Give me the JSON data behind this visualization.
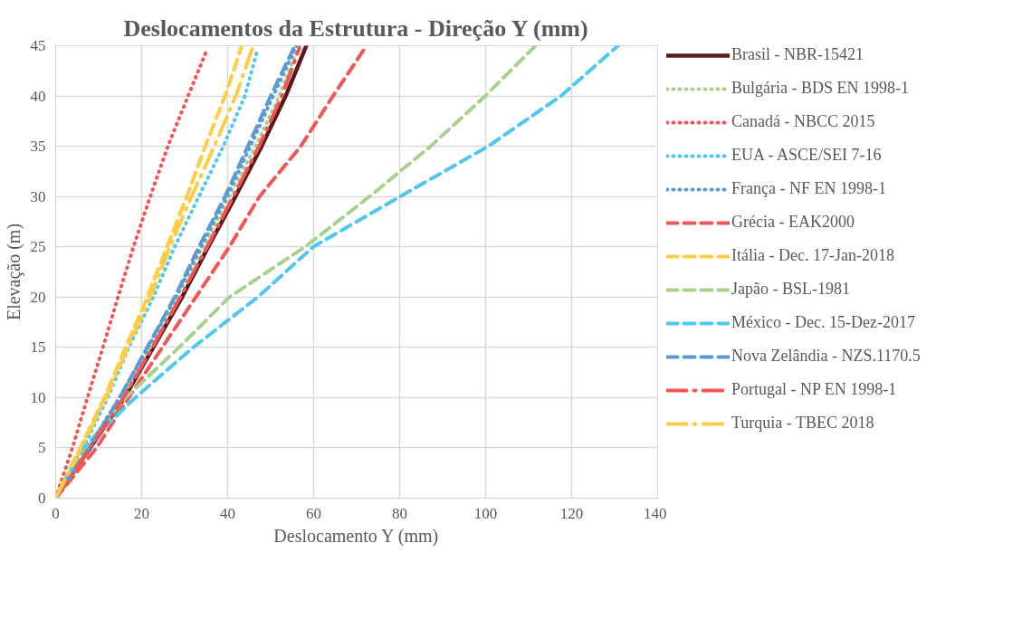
{
  "chart_data": {
    "type": "line",
    "title": "Deslocamentos da Estrutura - Direção Y (mm)",
    "xlabel": "Deslocamento Y (mm)",
    "ylabel": "Elevação (m)",
    "xlim": [
      0,
      140
    ],
    "ylim": [
      0,
      45
    ],
    "xticks": [
      0,
      20,
      40,
      60,
      80,
      100,
      120,
      140
    ],
    "yticks": [
      0,
      5,
      10,
      15,
      20,
      25,
      30,
      35,
      40,
      45
    ],
    "grid": true,
    "legend": "right",
    "series": [
      {
        "name": "Brasil - NBR-15421",
        "color": "#5b1a1a",
        "line_style": "solid",
        "x": [
          0,
          8,
          16,
          22.7,
          29.4,
          35.5,
          41.8,
          47.9,
          53.5,
          58.3
        ],
        "values": [
          0,
          5,
          10,
          15,
          20,
          25,
          30,
          35,
          40,
          45
        ]
      },
      {
        "name": "Bulgária - BDS EN 1998-1",
        "color": "#a9d18e",
        "line_style": "dotted",
        "x": [
          0,
          7.8,
          15.5,
          22,
          28.2,
          34.3,
          40.4,
          46.5,
          52,
          56.5
        ],
        "values": [
          0,
          5,
          10,
          15,
          20,
          25,
          30,
          35,
          40,
          45
        ]
      },
      {
        "name": "Canadá - NBCC 2015",
        "color": "#f25555",
        "line_style": "dotted",
        "x": [
          0,
          3.9,
          7.4,
          11,
          14.5,
          18.1,
          22,
          26.1,
          30.8,
          34.9
        ],
        "values": [
          0,
          5,
          10,
          15,
          20,
          25,
          30,
          35,
          40,
          44.3
        ]
      },
      {
        "name": "EUA - ASCE/SEI 7-16",
        "color": "#4ec8f0",
        "line_style": "dotted",
        "x": [
          0,
          6.4,
          12.1,
          17,
          22.7,
          27.7,
          33.3,
          39,
          44,
          46.8
        ],
        "values": [
          0,
          5,
          10,
          15,
          20,
          25,
          30,
          35,
          40,
          44.4
        ]
      },
      {
        "name": "França - NF EN 1998-1",
        "color": "#5b9bd5",
        "line_style": "dotted",
        "x": [
          0,
          7.6,
          14.8,
          21.5,
          27.9,
          33.8,
          39.8,
          45.3,
          50.6,
          56
        ],
        "values": [
          0,
          5,
          10,
          15,
          20,
          25,
          30,
          35,
          40,
          45
        ]
      },
      {
        "name": "Grécia - EAK2000",
        "color": "#f25555",
        "line_style": "dashed",
        "x": [
          0,
          9.5,
          17,
          24.8,
          32.6,
          40.4,
          47.4,
          57,
          64.5,
          72.3
        ],
        "values": [
          0,
          5,
          10,
          15,
          20,
          25,
          30,
          35,
          40,
          45
        ]
      },
      {
        "name": "Itália - Dec. 17-Jan-2018",
        "color": "#ffcd44",
        "line_style": "dashed",
        "x": [
          0,
          5.7,
          11.3,
          16.3,
          21.3,
          25.9,
          30.5,
          34.8,
          39.4,
          43.3
        ],
        "values": [
          0,
          5,
          10,
          15,
          20,
          25,
          30,
          35,
          40,
          45
        ]
      },
      {
        "name": "Japão - BSL-1981",
        "color": "#a9d18e",
        "line_style": "dashed",
        "x": [
          0,
          6.7,
          16.3,
          28.7,
          40.4,
          58,
          73,
          87.2,
          99.9,
          111.6
        ],
        "values": [
          0,
          5,
          10,
          15,
          20,
          25,
          30,
          35,
          40,
          45
        ]
      },
      {
        "name": "México - Dec. 15-Dez-2017",
        "color": "#4ec8f0",
        "line_style": "dashed",
        "x": [
          0,
          6.4,
          18.5,
          32,
          47,
          59.9,
          80.1,
          100.6,
          117.5,
          130.8
        ],
        "values": [
          0,
          5,
          10,
          15,
          20,
          25,
          30,
          35,
          40,
          45
        ]
      },
      {
        "name": "Nova Zelândia - NZS.1170.5",
        "color": "#5b9bd5",
        "line_style": "dashed",
        "x": [
          0,
          7.8,
          14.9,
          21.3,
          27.7,
          33.3,
          39.4,
          44.7,
          50,
          55.3
        ],
        "values": [
          0,
          5,
          10,
          15,
          20,
          25,
          30,
          35,
          40,
          44.7
        ]
      },
      {
        "name": "Portugal - NP EN 1998-1",
        "color": "#f25555",
        "line_style": "dashdot",
        "x": [
          0,
          8,
          15.8,
          22.5,
          29,
          35.2,
          41.3,
          47.3,
          52.6,
          56.7
        ],
        "values": [
          0,
          5,
          10,
          15,
          20,
          25,
          30,
          35,
          40,
          44.8
        ]
      },
      {
        "name": "Turquia - TBEC 2018",
        "color": "#ffcd44",
        "line_style": "dashdot",
        "x": [
          0,
          6,
          11.7,
          16.8,
          22,
          26.6,
          31.6,
          36.9,
          41.9,
          45.7
        ],
        "values": [
          0,
          5,
          10,
          15,
          20,
          25,
          30,
          35,
          40,
          44.7
        ]
      }
    ]
  }
}
